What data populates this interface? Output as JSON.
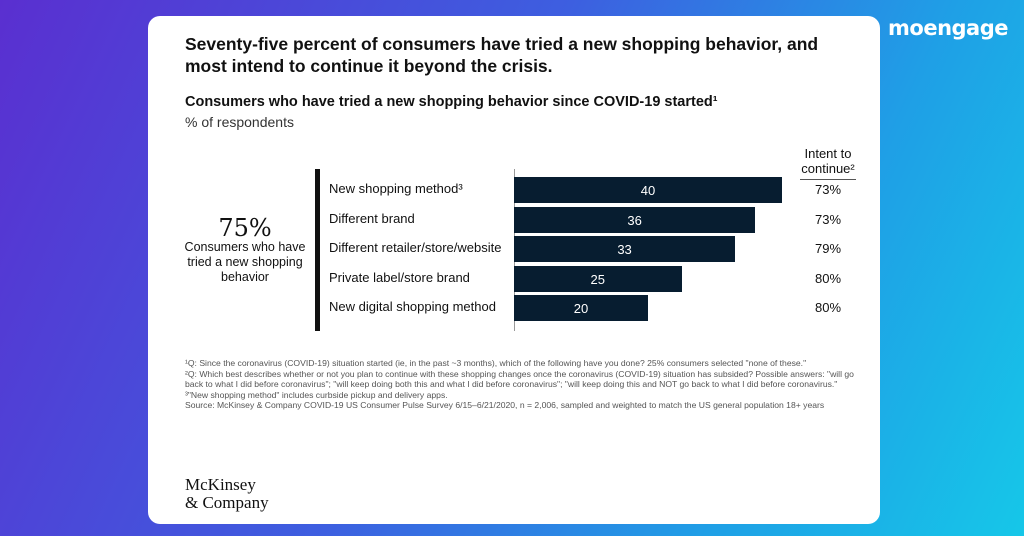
{
  "brand": "moengage",
  "headline": "Seventy-five percent of consumers have tried a new shopping behavior, and most intend to continue it beyond the crisis.",
  "subtitle": "Consumers who have tried a new shopping behavior since COVID-19 started¹",
  "unit": "% of respondents",
  "intent_header": [
    "Intent to",
    "continue²"
  ],
  "summary": {
    "value": "75%",
    "label": "Consumers who have tried a new shopping behavior"
  },
  "chart_data": {
    "type": "bar",
    "orientation": "horizontal",
    "categories": [
      "New shopping method³",
      "Different brand",
      "Different retailer/store/website",
      "Private label/store brand",
      "New digital shopping method"
    ],
    "values": [
      40,
      36,
      33,
      25,
      20
    ],
    "intent_to_continue": [
      "73%",
      "73%",
      "79%",
      "80%",
      "80%"
    ],
    "xlim": [
      0,
      40
    ],
    "bar_color": "#071d30",
    "grid": false
  },
  "footnotes": [
    "¹Q: Since the coronavirus (COVID-19) situation started (ie, in the past ~3 months), which of the following have you done? 25% consumers selected \"none of these.\"",
    "²Q: Which best describes whether or not you plan to continue with these shopping changes once the coronavirus (COVID-19) situation has subsided? Possible answers: \"will go back to what I did before coronavirus\"; \"will keep doing both this and what I did before coronavirus\"; \"will keep doing this and NOT go back to what I did before coronavirus.\"",
    "³\"New shopping method\" includes curbside pickup and delivery apps.",
    "Source: McKinsey & Company COVID-19 US Consumer Pulse Survey 6/15–6/21/2020, n = 2,006, sampled and weighted to match the US general population 18+ years"
  ],
  "logo": [
    "McKinsey",
    "& Company"
  ],
  "colors": {
    "accent": "#071d30"
  }
}
